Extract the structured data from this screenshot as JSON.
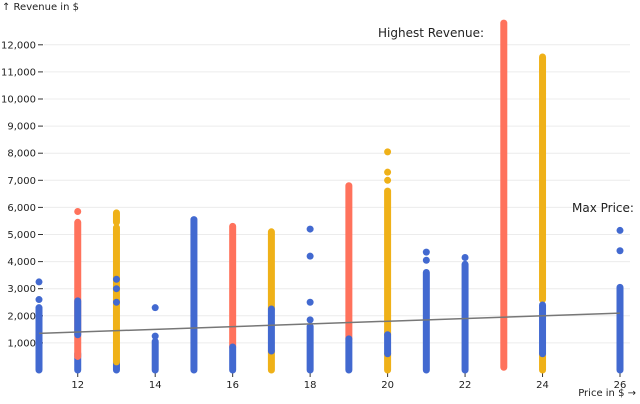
{
  "chart_data": {
    "type": "scatter",
    "xlabel": "Price in $ →",
    "ylabel": "↑ Revenue in $",
    "xlim": [
      11,
      26
    ],
    "ylim": [
      0,
      13000
    ],
    "x_ticks": [
      12,
      14,
      16,
      18,
      20,
      22,
      24,
      26
    ],
    "x_tick_labels": [
      "12",
      "14",
      "16",
      "18",
      "20",
      "22",
      "24",
      "26"
    ],
    "y_ticks": [
      1000,
      2000,
      3000,
      4000,
      5000,
      6000,
      7000,
      8000,
      9000,
      10000,
      11000,
      12000
    ],
    "y_tick_labels": [
      "1,000",
      "2,000",
      "3,000",
      "4,000",
      "5,000",
      "6,000",
      "7,000",
      "8,000",
      "9,000",
      "10,000",
      "11,000",
      "12,000"
    ],
    "grid": "horizontal",
    "colors": {
      "blue": "#4269d0",
      "red": "#ff725c",
      "yellow": "#efb118",
      "trend": "#777777"
    },
    "ranges": [
      {
        "x": 11,
        "color": "blue",
        "min": 0,
        "max": 2300
      },
      {
        "x": 12,
        "color": "blue",
        "min": 0,
        "max": 600
      },
      {
        "x": 12,
        "color": "red",
        "min": 500,
        "max": 5450
      },
      {
        "x": 12,
        "color": "blue",
        "min": 1300,
        "max": 2550
      },
      {
        "x": 13,
        "color": "blue",
        "min": 0,
        "max": 300
      },
      {
        "x": 13,
        "color": "yellow",
        "min": 300,
        "max": 5250
      },
      {
        "x": 13,
        "color": "yellow",
        "min": 5450,
        "max": 5800
      },
      {
        "x": 14,
        "color": "blue",
        "min": 0,
        "max": 1050
      },
      {
        "x": 15,
        "color": "blue",
        "min": 0,
        "max": 5550
      },
      {
        "x": 16,
        "color": "red",
        "min": 850,
        "max": 5300
      },
      {
        "x": 16,
        "color": "blue",
        "min": 0,
        "max": 850
      },
      {
        "x": 17,
        "color": "yellow",
        "min": 0,
        "max": 700
      },
      {
        "x": 17,
        "color": "yellow",
        "min": 2250,
        "max": 5100
      },
      {
        "x": 17,
        "color": "blue",
        "min": 700,
        "max": 2250
      },
      {
        "x": 18,
        "color": "blue",
        "min": 0,
        "max": 1600
      },
      {
        "x": 19,
        "color": "red",
        "min": 1150,
        "max": 6800
      },
      {
        "x": 19,
        "color": "blue",
        "min": 0,
        "max": 1150
      },
      {
        "x": 20,
        "color": "yellow",
        "min": 0,
        "max": 600
      },
      {
        "x": 20,
        "color": "yellow",
        "min": 1300,
        "max": 6600
      },
      {
        "x": 20,
        "color": "blue",
        "min": 600,
        "max": 1300
      },
      {
        "x": 21,
        "color": "blue",
        "min": 0,
        "max": 3600
      },
      {
        "x": 22,
        "color": "blue",
        "min": 0,
        "max": 3900
      },
      {
        "x": 23,
        "color": "red",
        "min": 100,
        "max": 12800
      },
      {
        "x": 24,
        "color": "yellow",
        "min": 0,
        "max": 600
      },
      {
        "x": 24,
        "color": "yellow",
        "min": 2600,
        "max": 11550
      },
      {
        "x": 24,
        "color": "blue",
        "min": 600,
        "max": 2400
      },
      {
        "x": 26,
        "color": "blue",
        "min": 0,
        "max": 3050
      }
    ],
    "points": [
      {
        "x": 11,
        "y": 2600,
        "color": "blue"
      },
      {
        "x": 11,
        "y": 3250,
        "color": "blue"
      },
      {
        "x": 12,
        "y": 5850,
        "color": "red"
      },
      {
        "x": 13,
        "y": 2500,
        "color": "blue"
      },
      {
        "x": 13,
        "y": 3000,
        "color": "blue"
      },
      {
        "x": 13,
        "y": 3350,
        "color": "blue"
      },
      {
        "x": 14,
        "y": 1250,
        "color": "blue"
      },
      {
        "x": 14,
        "y": 2300,
        "color": "blue"
      },
      {
        "x": 18,
        "y": 1850,
        "color": "blue"
      },
      {
        "x": 18,
        "y": 2500,
        "color": "blue"
      },
      {
        "x": 18,
        "y": 4200,
        "color": "blue"
      },
      {
        "x": 18,
        "y": 5200,
        "color": "blue"
      },
      {
        "x": 20,
        "y": 7000,
        "color": "yellow"
      },
      {
        "x": 20,
        "y": 7300,
        "color": "yellow"
      },
      {
        "x": 20,
        "y": 8050,
        "color": "yellow"
      },
      {
        "x": 21,
        "y": 4050,
        "color": "blue"
      },
      {
        "x": 21,
        "y": 4350,
        "color": "blue"
      },
      {
        "x": 22,
        "y": 4150,
        "color": "blue"
      },
      {
        "x": 24,
        "y": 10200,
        "color": "yellow"
      },
      {
        "x": 24,
        "y": 11100,
        "color": "yellow"
      },
      {
        "x": 26,
        "y": 4400,
        "color": "blue"
      },
      {
        "x": 26,
        "y": 5150,
        "color": "blue"
      }
    ],
    "trend_line": {
      "x": [
        11,
        26
      ],
      "y": [
        1350,
        2100
      ]
    },
    "annotations": [
      "Highest Revenue:",
      "Max Price:"
    ]
  }
}
